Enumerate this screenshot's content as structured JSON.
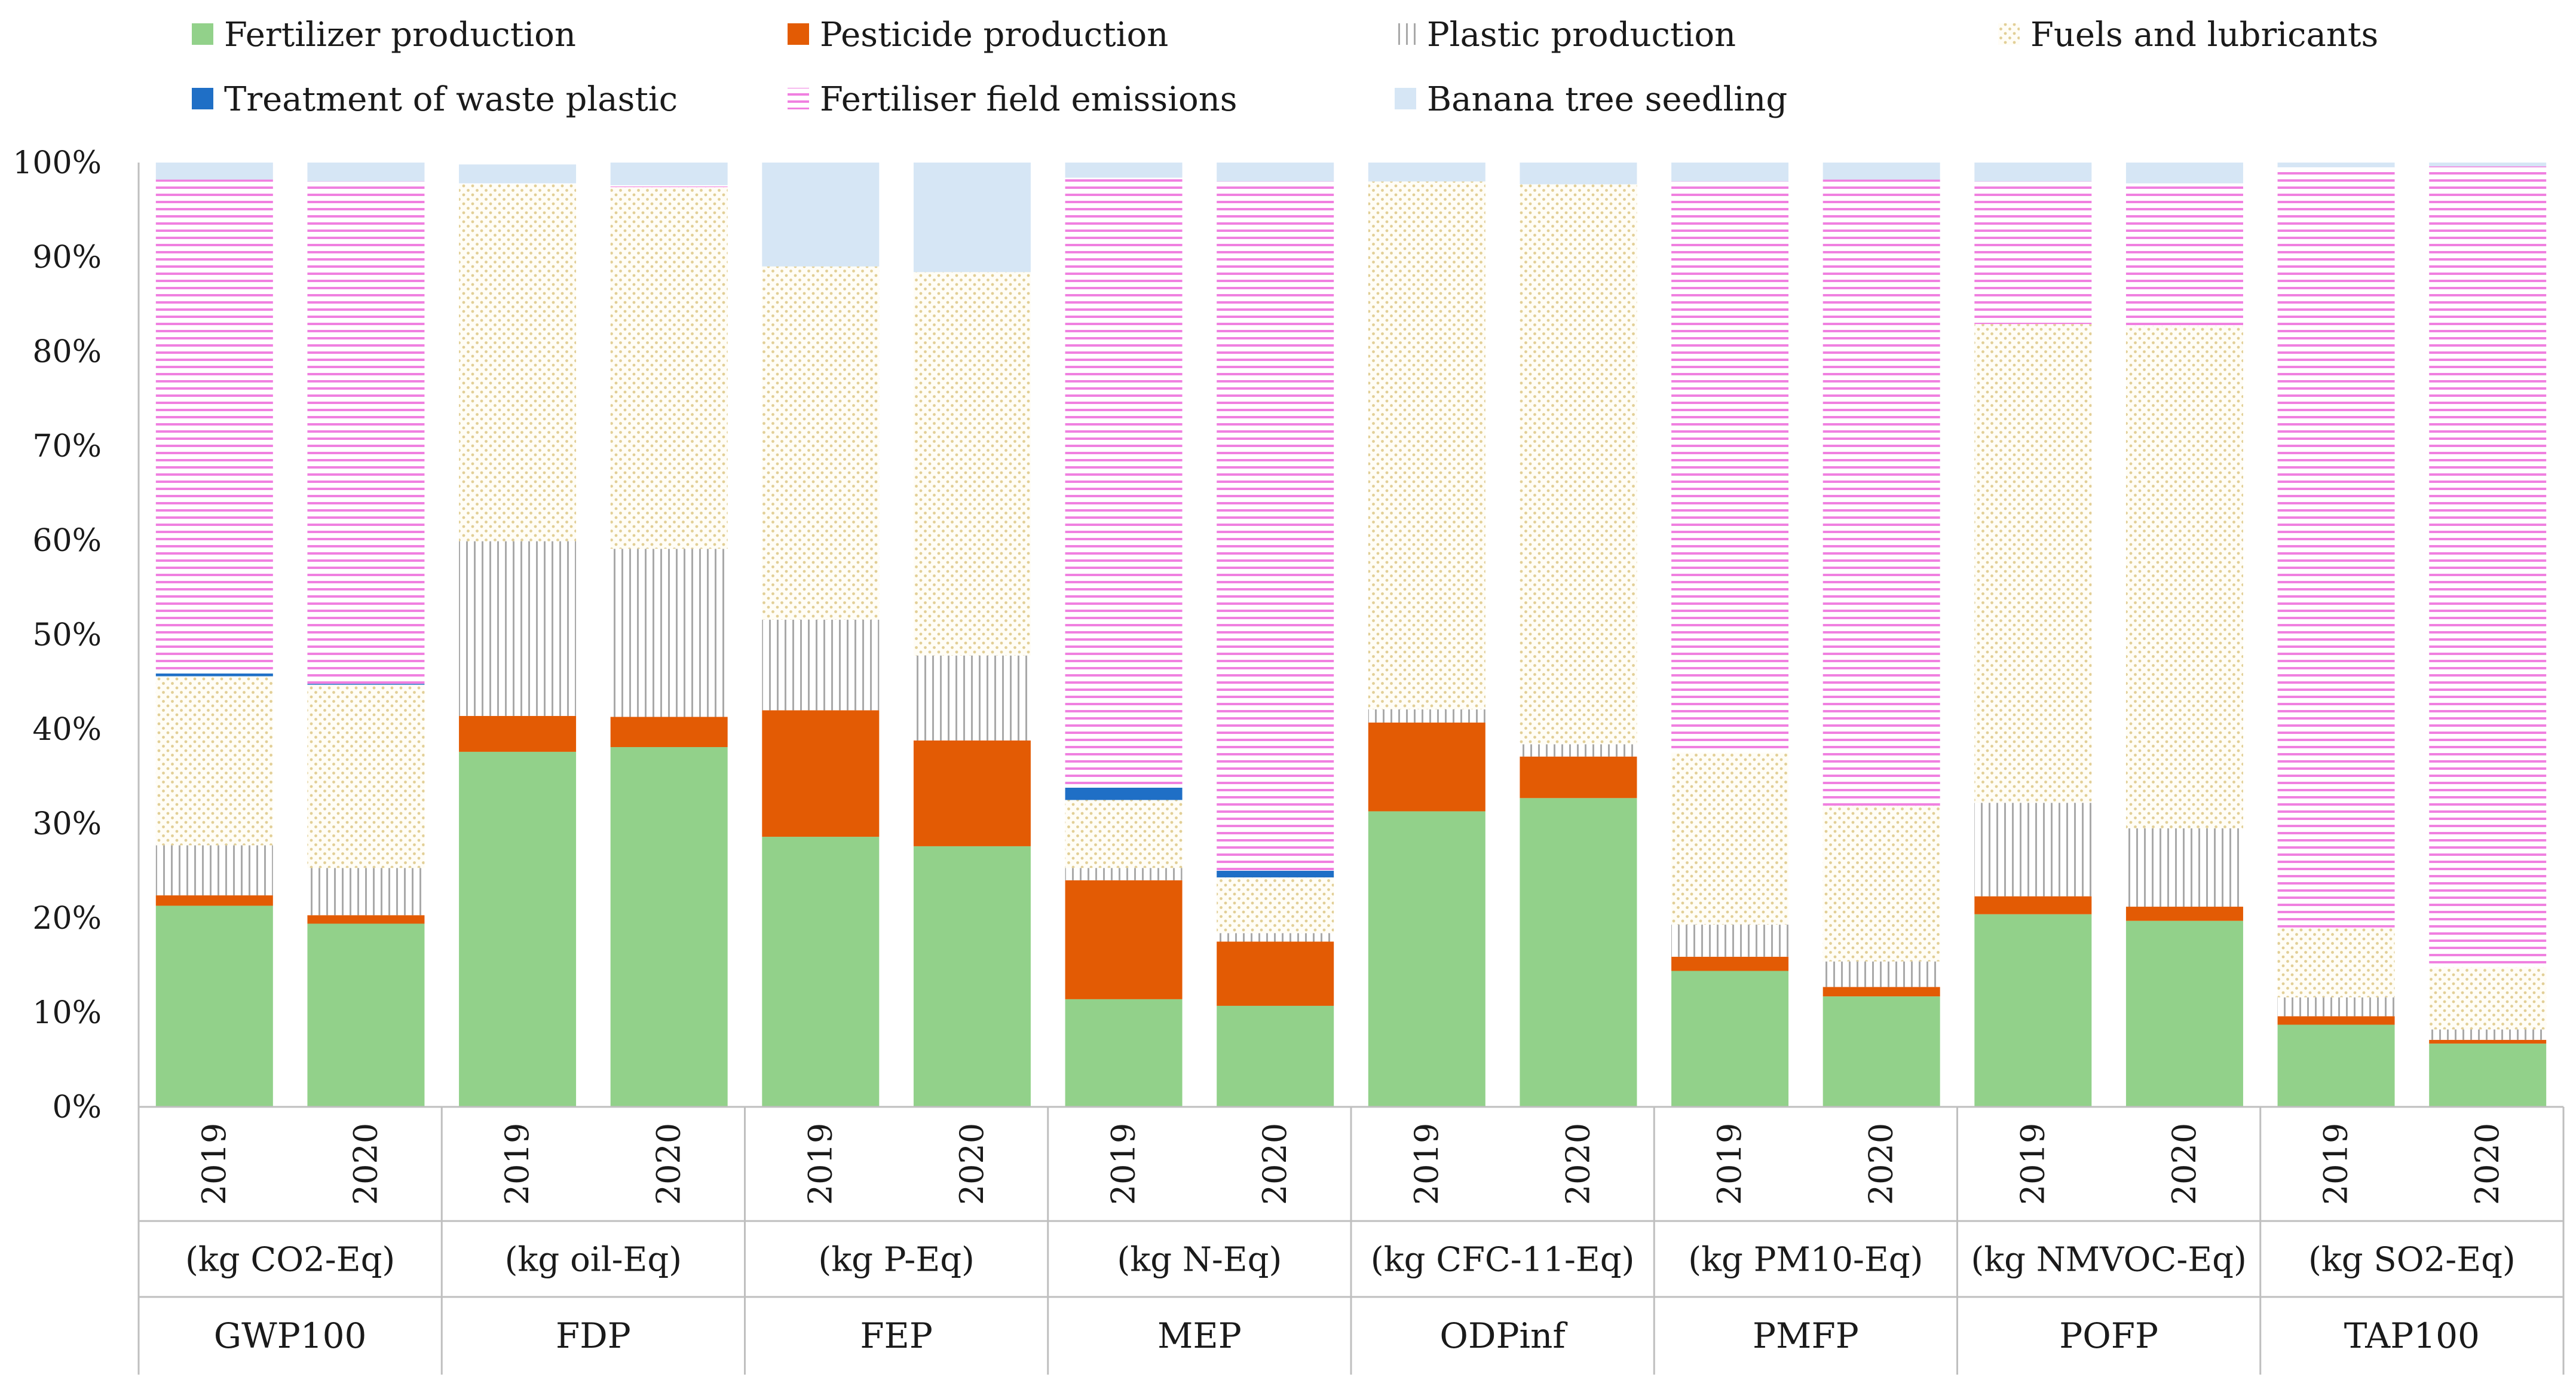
{
  "chart_data": {
    "type": "bar",
    "stacked": true,
    "normalized": true,
    "title": "",
    "xlabel": "",
    "ylabel": "",
    "ylim": [
      0,
      100
    ],
    "yticks": [
      "0%",
      "10%",
      "20%",
      "30%",
      "40%",
      "50%",
      "60%",
      "70%",
      "80%",
      "90%",
      "100%"
    ],
    "legend_position": "top",
    "groups": [
      {
        "name": "GWP100",
        "unit": "(kg CO2-Eq)"
      },
      {
        "name": "FDP",
        "unit": "(kg oil-Eq)"
      },
      {
        "name": "FEP",
        "unit": "(kg P-Eq)"
      },
      {
        "name": "MEP",
        "unit": "(kg N-Eq)"
      },
      {
        "name": "ODPinf",
        "unit": "(kg CFC-11-Eq)"
      },
      {
        "name": "PMFP",
        "unit": "(kg PM10-Eq)"
      },
      {
        "name": "POFP",
        "unit": "(kg NMVOC-Eq)"
      },
      {
        "name": "TAP100",
        "unit": "(kg SO2-Eq)"
      }
    ],
    "years": [
      "2019",
      "2020"
    ],
    "categories": [
      "GWP100 2019",
      "GWP100 2020",
      "FDP 2019",
      "FDP 2020",
      "FEP 2019",
      "FEP 2020",
      "MEP 2019",
      "MEP 2020",
      "ODPinf 2019",
      "ODPinf 2020",
      "PMFP 2019",
      "PMFP 2020",
      "POFP 2019",
      "POFP 2020",
      "TAP100 2019",
      "TAP100 2020"
    ],
    "series": [
      {
        "name": "Fertilizer production",
        "color": "#92d18a",
        "pattern": "solid",
        "values": [
          21.3,
          19.4,
          37.6,
          38.1,
          28.6,
          27.6,
          11.4,
          10.7,
          31.3,
          32.7,
          14.4,
          11.7,
          20.4,
          19.7,
          8.7,
          6.7
        ]
      },
      {
        "name": "Pesticide production",
        "color": "#e35b04",
        "pattern": "solid",
        "values": [
          1.1,
          0.9,
          3.8,
          3.2,
          13.4,
          11.2,
          12.6,
          6.8,
          9.4,
          4.4,
          1.5,
          1.0,
          1.9,
          1.5,
          0.9,
          0.4
        ]
      },
      {
        "name": "Plastic production",
        "color": "#a9a9a9",
        "pattern": "vertical",
        "values": [
          5.3,
          5.0,
          18.5,
          17.8,
          9.6,
          9.0,
          1.3,
          0.9,
          1.4,
          1.3,
          3.4,
          2.7,
          9.9,
          8.3,
          2.0,
          1.1
        ]
      },
      {
        "name": "Fuels and lubricants",
        "color": "#e8d9a8",
        "pattern": "dots",
        "values": [
          17.9,
          19.4,
          37.8,
          38.3,
          37.4,
          40.6,
          7.2,
          5.9,
          55.9,
          59.3,
          18.2,
          16.5,
          50.7,
          53.2,
          7.4,
          6.6
        ]
      },
      {
        "name": "Treatment of waste plastic",
        "color": "#1f6fc6",
        "pattern": "solid",
        "values": [
          0.3,
          0.1,
          0.0,
          0.0,
          0.0,
          0.0,
          1.3,
          0.7,
          0.0,
          0.0,
          0.0,
          0.0,
          0.0,
          0.0,
          0.0,
          0.0
        ]
      },
      {
        "name": "Fertiliser field emissions",
        "color": "#f080e0",
        "pattern": "horizontal",
        "values": [
          52.3,
          53.2,
          0.1,
          0.2,
          0.0,
          0.0,
          64.6,
          73.0,
          0.0,
          0.0,
          60.5,
          66.3,
          15.1,
          15.1,
          80.5,
          84.8
        ]
      },
      {
        "name": "Banana tree seedling",
        "color": "#d6e6f5",
        "pattern": "solid",
        "values": [
          1.8,
          2.0,
          2.0,
          2.4,
          11.0,
          11.6,
          1.6,
          2.0,
          2.0,
          2.3,
          2.0,
          1.8,
          2.0,
          2.2,
          0.5,
          0.4
        ]
      }
    ]
  }
}
